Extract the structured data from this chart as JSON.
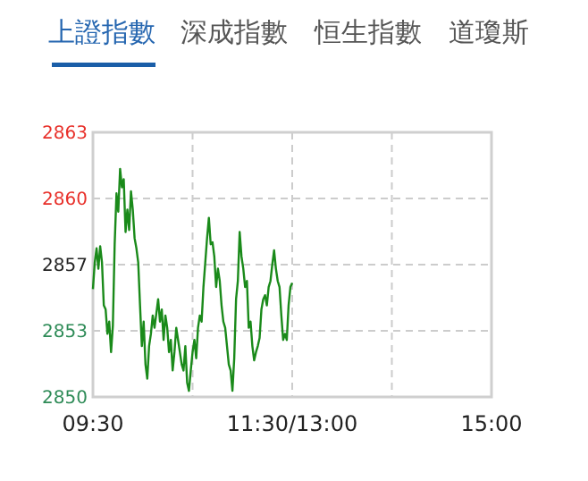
{
  "chart_data": {
    "type": "line",
    "annotations": [
      "上證指數",
      "深成指數",
      "恒生指數",
      "道瓊斯"
    ],
    "categories": [
      "09:30",
      null,
      null,
      null,
      null,
      null,
      null,
      null,
      null,
      null,
      null,
      null,
      null,
      null,
      null,
      null,
      null,
      null,
      null,
      null,
      null,
      null,
      null,
      null,
      null,
      null,
      null,
      null,
      null,
      null,
      null,
      null,
      null,
      null,
      null,
      null,
      null,
      null,
      null,
      null,
      null,
      null,
      null,
      null,
      null,
      null,
      null,
      null,
      null,
      null,
      null,
      null,
      null,
      null,
      null,
      null,
      null,
      null,
      null,
      null,
      null,
      null,
      null,
      null,
      null,
      null,
      null,
      null,
      null,
      null,
      null,
      null,
      null,
      null,
      null,
      null,
      null,
      null,
      null,
      null,
      null,
      null,
      null,
      null,
      null,
      null,
      null,
      null,
      null,
      null,
      null,
      null,
      null,
      null,
      null,
      null,
      null,
      null,
      null,
      null,
      null,
      null,
      null,
      null,
      null,
      null,
      null,
      null,
      null,
      null,
      "11:30/13:00",
      null,
      null,
      null,
      null,
      null,
      null,
      null,
      null,
      null,
      null,
      null,
      null,
      null,
      null,
      null,
      null,
      null,
      null,
      null,
      null,
      null,
      null,
      null,
      null,
      null,
      null,
      null,
      null,
      null,
      null,
      null,
      null,
      null,
      null,
      null,
      null,
      null,
      null,
      null,
      null,
      null,
      null,
      null,
      null,
      null,
      null,
      null,
      null,
      null,
      null,
      null,
      null,
      null,
      null,
      null,
      null,
      null,
      null,
      null,
      null,
      null,
      null,
      null,
      null,
      null,
      null,
      null,
      null,
      null,
      null,
      null,
      null,
      null,
      null,
      null,
      null,
      null,
      null,
      null,
      null,
      null,
      null,
      null,
      null,
      null,
      null,
      null,
      null,
      null,
      null,
      null,
      null,
      null,
      null,
      null,
      null,
      null,
      null,
      null,
      null,
      null,
      null,
      null,
      null,
      null,
      null,
      null,
      null,
      null,
      "15:00"
    ],
    "ylim": [
      2850,
      2863
    ],
    "yticks": [
      2850,
      {
        "value": 2853.25,
        "label": "2853"
      },
      {
        "value": 2856.5,
        "label": "2857"
      },
      {
        "value": 2859.75,
        "label": "2860"
      },
      2863
    ],
    "grid": true,
    "line_style": "solid",
    "series": [
      {
        "color": "#1a8a1a",
        "values": [
          2855.3,
          2856.6,
          2857.3,
          2856.3,
          2857.4,
          2856.6,
          2854.5,
          2854.3,
          2853.1,
          2853.7,
          2852.2,
          2853.5,
          2857.5,
          2860.0,
          2859.1,
          2861.2,
          2860.3,
          2860.7,
          2858.1,
          2859.2,
          2858.2,
          2860.1,
          2859.2,
          2857.8,
          2857.3,
          2856.6,
          2854.5,
          2852.5,
          2853.7,
          2851.6,
          2850.9,
          2852.5,
          2853.1,
          2854.0,
          2853.4,
          2854.1,
          2854.8,
          2853.7,
          2854.3,
          2852.8,
          2854.0,
          2853.4,
          2852.2,
          2852.8,
          2851.3,
          2852.2,
          2853.4,
          2852.8,
          2852.2,
          2851.6,
          2851.3,
          2852.5,
          2850.7,
          2850.3,
          2851.3,
          2852.2,
          2852.8,
          2851.9,
          2853.4,
          2854.0,
          2853.7,
          2855.4,
          2856.6,
          2857.8,
          2858.8,
          2857.5,
          2857.6,
          2856.9,
          2855.4,
          2856.3,
          2855.7,
          2854.5,
          2853.7,
          2853.4,
          2852.5,
          2851.6,
          2851.3,
          2850.3,
          2851.9,
          2854.8,
          2855.7,
          2858.1,
          2856.9,
          2856.3,
          2855.4,
          2855.7,
          2853.4,
          2853.7,
          2852.5,
          2851.8,
          2852.2,
          2852.5,
          2852.9,
          2854.3,
          2854.8,
          2855.0,
          2854.5,
          2855.4,
          2855.7,
          2856.5,
          2857.2,
          2856.3,
          2855.7,
          2855.4,
          2854.0,
          2852.8,
          2853.1,
          2852.8,
          2854.5,
          2855.4,
          2855.6,
          null,
          null,
          null,
          null,
          null,
          null,
          null,
          null,
          null,
          null,
          null,
          null,
          null,
          null,
          null,
          null,
          null,
          null,
          null,
          null,
          null,
          null,
          null,
          null,
          null,
          null,
          null,
          null,
          null,
          null,
          null,
          null,
          null,
          null,
          null,
          null,
          null,
          null,
          null,
          null,
          null,
          null,
          null,
          null,
          null,
          null,
          null,
          null,
          null,
          null,
          null,
          null,
          null,
          null,
          null,
          null,
          null,
          null,
          null,
          null,
          null,
          null,
          null,
          null,
          null,
          null,
          null,
          null,
          null,
          null,
          null,
          null,
          null,
          null,
          null,
          null,
          null,
          null,
          null,
          null,
          null,
          null,
          null,
          null,
          null,
          null,
          null,
          null,
          null,
          null,
          null,
          null,
          null,
          null,
          null,
          null,
          null,
          null,
          null,
          null,
          null,
          null,
          null,
          null,
          null,
          null,
          null,
          null,
          null,
          null
        ]
      }
    ]
  }
}
